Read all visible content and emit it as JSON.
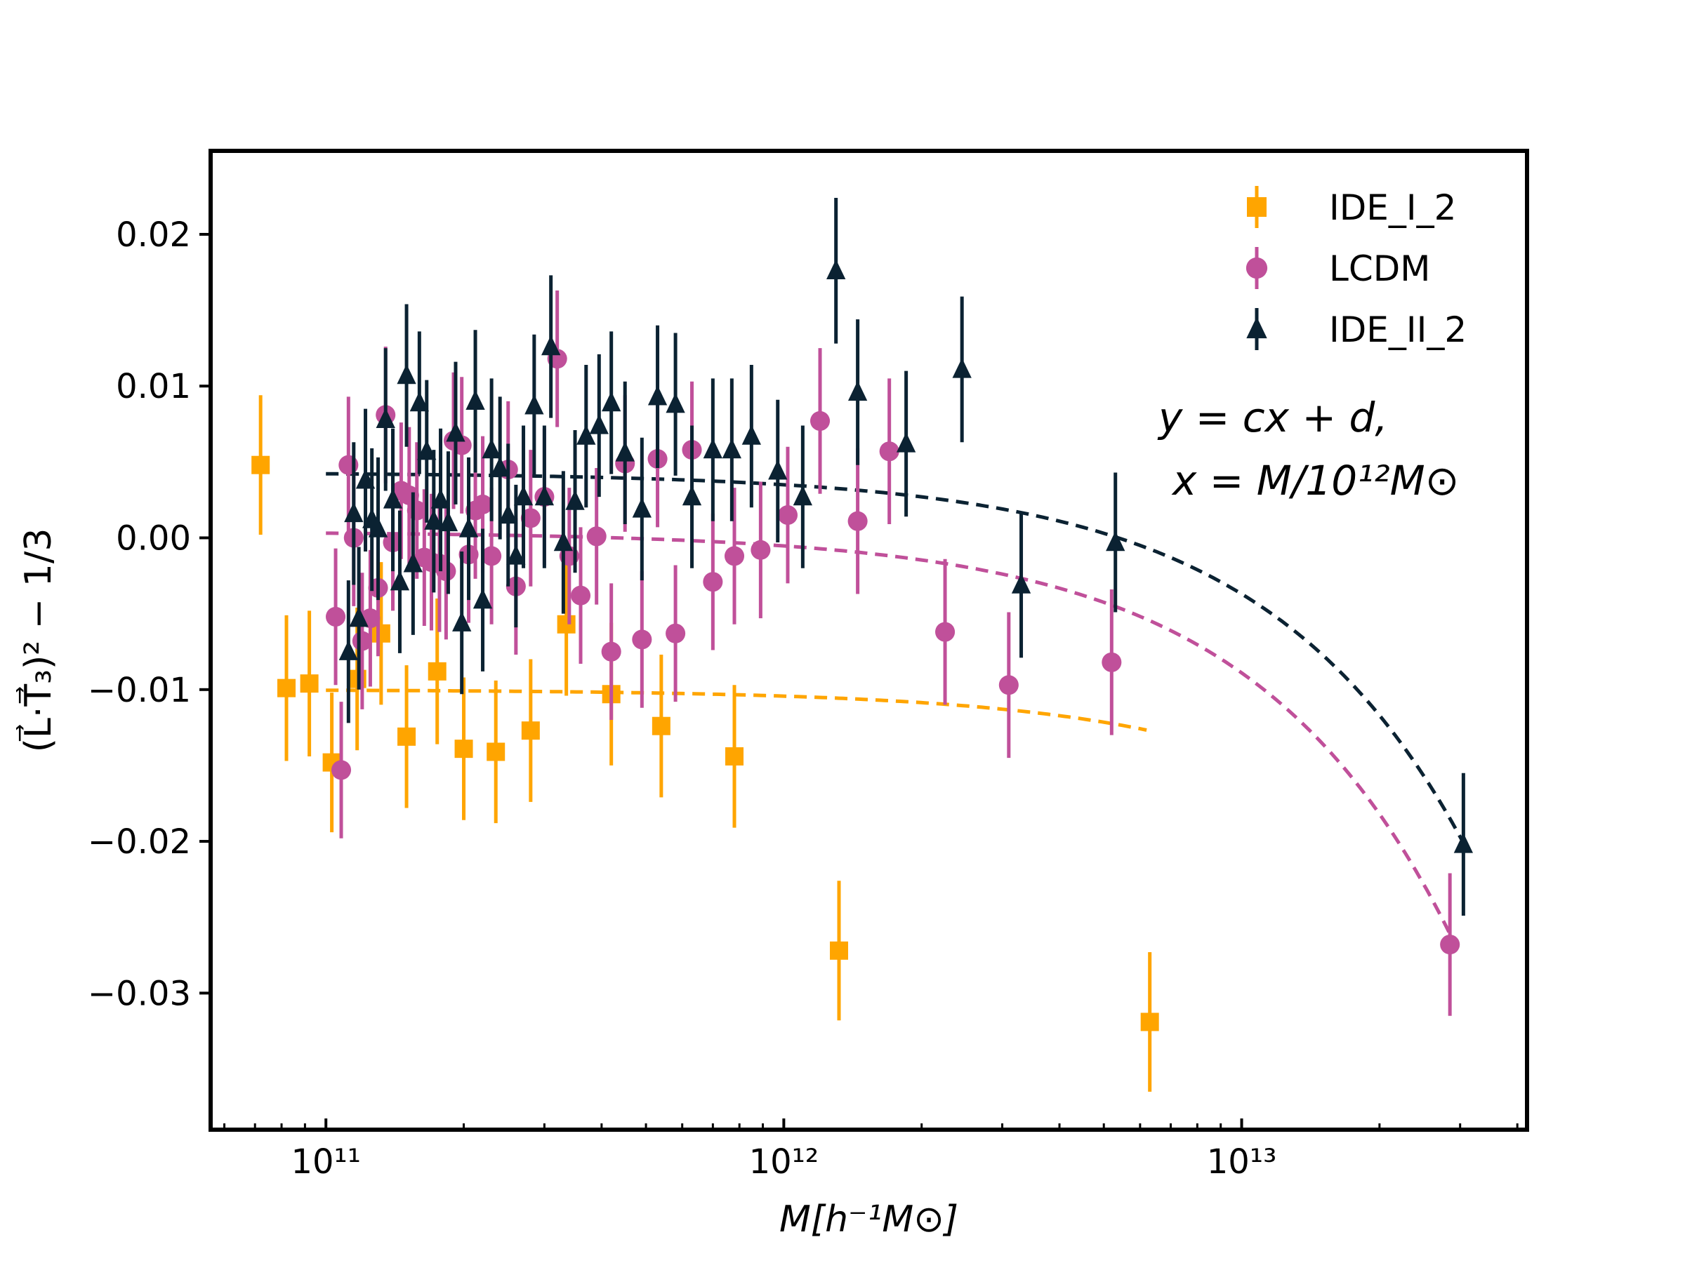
{
  "chart_data": {
    "type": "scatter",
    "xscale": "log",
    "xlim": [
      56000000000.0,
      42000000000000.0
    ],
    "ylim": [
      -0.039,
      0.0255
    ],
    "xlabel": "M[h⁻¹M⊙]",
    "ylabel": "(L⃗·T⃗₃)² − 1/3",
    "x_tick_labels": [
      "10¹¹",
      "10¹²",
      "10¹³"
    ],
    "x_tick_values": [
      100000000000.0,
      1000000000000.0,
      10000000000000.0
    ],
    "y_tick_values": [
      0.02,
      0.01,
      0.0,
      -0.01,
      -0.02,
      -0.03
    ],
    "y_tick_labels": [
      "0.02",
      "0.01",
      "0.00",
      "−0.01",
      "−0.02",
      "−0.03"
    ],
    "grid": false,
    "legend": {
      "position": "top-right",
      "entries": [
        "IDE_I_2",
        "LCDM",
        "IDE_II_2"
      ]
    },
    "annotation": [
      "y = cx + d,",
      "x = M/10¹²M⊙"
    ],
    "series": [
      {
        "name": "IDE_I_2",
        "marker": "square",
        "color": "#FFA500",
        "points": [
          [
            72000000000.0,
            0.0048,
            0.0046
          ],
          [
            82000000000.0,
            -0.0099,
            0.0048
          ],
          [
            92000000000.0,
            -0.0096,
            0.0048
          ],
          [
            103000000000.0,
            -0.0148,
            0.0046
          ],
          [
            117000000000.0,
            -0.0093,
            0.0047
          ],
          [
            132000000000.0,
            -0.0063,
            0.0047
          ],
          [
            150000000000.0,
            -0.0131,
            0.0047
          ],
          [
            175000000000.0,
            -0.0088,
            0.0048
          ],
          [
            200000000000.0,
            -0.0139,
            0.0047
          ],
          [
            235000000000.0,
            -0.0141,
            0.0047
          ],
          [
            280000000000.0,
            -0.0127,
            0.0047
          ],
          [
            335000000000.0,
            -0.0057,
            0.0047
          ],
          [
            420000000000.0,
            -0.0103,
            0.0047
          ],
          [
            540000000000.0,
            -0.0124,
            0.0047
          ],
          [
            780000000000.0,
            -0.0144,
            0.0047
          ],
          [
            1320000000000.0,
            -0.0272,
            0.0046
          ],
          [
            6300000000000.0,
            -0.0319,
            0.0046
          ]
        ],
        "fit": {
          "c": -0.00043,
          "d": -0.01,
          "x_range": [
            100000000000.0,
            6200000000000.0
          ]
        }
      },
      {
        "name": "LCDM",
        "marker": "circle",
        "color": "#C0509A",
        "points": [
          [
            105000000000.0,
            -0.0052,
            0.0045
          ],
          [
            108000000000.0,
            -0.0153,
            0.0045
          ],
          [
            112000000000.0,
            0.0048,
            0.0045
          ],
          [
            115000000000.0,
            0.0,
            0.0045
          ],
          [
            120000000000.0,
            -0.0068,
            0.0045
          ],
          [
            125000000000.0,
            -0.0053,
            0.0045
          ],
          [
            130000000000.0,
            -0.0033,
            0.0045
          ],
          [
            135000000000.0,
            0.0081,
            0.0045
          ],
          [
            140000000000.0,
            -0.0003,
            0.0045
          ],
          [
            146000000000.0,
            0.0031,
            0.0045
          ],
          [
            152000000000.0,
            0.0028,
            0.0045
          ],
          [
            158000000000.0,
            0.0018,
            0.0045
          ],
          [
            164000000000.0,
            -0.0013,
            0.0045
          ],
          [
            170000000000.0,
            -0.0016,
            0.0045
          ],
          [
            177000000000.0,
            -0.0017,
            0.0045
          ],
          [
            183000000000.0,
            -0.0022,
            0.0045
          ],
          [
            190000000000.0,
            0.0064,
            0.0045
          ],
          [
            198000000000.0,
            0.0061,
            0.0045
          ],
          [
            205000000000.0,
            -0.0011,
            0.0045
          ],
          [
            212000000000.0,
            0.0018,
            0.0045
          ],
          [
            220000000000.0,
            0.0022,
            0.0045
          ],
          [
            230000000000.0,
            -0.0012,
            0.0045
          ],
          [
            250000000000.0,
            0.0045,
            0.0045
          ],
          [
            260000000000.0,
            -0.0032,
            0.0045
          ],
          [
            280000000000.0,
            0.0013,
            0.0045
          ],
          [
            300000000000.0,
            0.0027,
            0.0045
          ],
          [
            320000000000.0,
            0.0118,
            0.0045
          ],
          [
            340000000000.0,
            -0.0012,
            0.0045
          ],
          [
            360000000000.0,
            -0.0038,
            0.0045
          ],
          [
            390000000000.0,
            0.0001,
            0.0045
          ],
          [
            420000000000.0,
            -0.0075,
            0.0045
          ],
          [
            450000000000.0,
            0.0049,
            0.0045
          ],
          [
            490000000000.0,
            -0.0067,
            0.0045
          ],
          [
            530000000000.0,
            0.0052,
            0.0045
          ],
          [
            580000000000.0,
            -0.0063,
            0.0045
          ],
          [
            630000000000.0,
            0.0058,
            0.0045
          ],
          [
            700000000000.0,
            -0.0029,
            0.0045
          ],
          [
            780000000000.0,
            -0.0012,
            0.0045
          ],
          [
            890000000000.0,
            -0.0008,
            0.0045
          ],
          [
            1020000000000.0,
            0.0015,
            0.0045
          ],
          [
            1200000000000.0,
            0.0077,
            0.0048
          ],
          [
            1450000000000.0,
            0.0011,
            0.0048
          ],
          [
            1700000000000.0,
            0.0057,
            0.0048
          ],
          [
            2250000000000.0,
            -0.0062,
            0.0048
          ],
          [
            3100000000000.0,
            -0.0097,
            0.0048
          ],
          [
            5200000000000.0,
            -0.0082,
            0.0048
          ],
          [
            28500000000000.0,
            -0.0268,
            0.0047
          ]
        ],
        "fit": {
          "c": -0.00093,
          "d": 0.0004,
          "x_range": [
            100000000000.0,
            28500000000000.0
          ]
        }
      },
      {
        "name": "IDE_II_2",
        "marker": "triangle",
        "color": "#0B2232",
        "points": [
          [
            112000000000.0,
            -0.0075,
            0.0047
          ],
          [
            115000000000.0,
            0.0016,
            0.0047
          ],
          [
            118000000000.0,
            -0.0053,
            0.0047
          ],
          [
            122000000000.0,
            0.0038,
            0.0047
          ],
          [
            126000000000.0,
            0.0012,
            0.0047
          ],
          [
            130000000000.0,
            0.0006,
            0.0047
          ],
          [
            135000000000.0,
            0.0078,
            0.0047
          ],
          [
            140000000000.0,
            0.0025,
            0.0047
          ],
          [
            145000000000.0,
            -0.0029,
            0.0047
          ],
          [
            150000000000.0,
            0.0107,
            0.0047
          ],
          [
            155000000000.0,
            -0.0017,
            0.0047
          ],
          [
            160000000000.0,
            0.0089,
            0.0047
          ],
          [
            166000000000.0,
            0.0057,
            0.0047
          ],
          [
            172000000000.0,
            0.0011,
            0.0047
          ],
          [
            178000000000.0,
            0.0025,
            0.0047
          ],
          [
            185000000000.0,
            0.001,
            0.0047
          ],
          [
            192000000000.0,
            0.0069,
            0.0047
          ],
          [
            198000000000.0,
            -0.0056,
            0.0047
          ],
          [
            205000000000.0,
            0.0006,
            0.0047
          ],
          [
            212000000000.0,
            0.009,
            0.0047
          ],
          [
            220000000000.0,
            -0.0041,
            0.0047
          ],
          [
            230000000000.0,
            0.0058,
            0.0047
          ],
          [
            240000000000.0,
            0.0046,
            0.0047
          ],
          [
            250000000000.0,
            0.0015,
            0.0047
          ],
          [
            260000000000.0,
            -0.0012,
            0.0047
          ],
          [
            270000000000.0,
            0.0027,
            0.0047
          ],
          [
            285000000000.0,
            0.0087,
            0.0047
          ],
          [
            300000000000.0,
            0.0027,
            0.0047
          ],
          [
            310000000000.0,
            0.0126,
            0.0047
          ],
          [
            330000000000.0,
            -0.0003,
            0.0047
          ],
          [
            350000000000.0,
            0.0024,
            0.0047
          ],
          [
            370000000000.0,
            0.0067,
            0.0047
          ],
          [
            395000000000.0,
            0.0074,
            0.0047
          ],
          [
            420000000000.0,
            0.0089,
            0.0047
          ],
          [
            450000000000.0,
            0.0056,
            0.0047
          ],
          [
            490000000000.0,
            0.0019,
            0.0047
          ],
          [
            530000000000.0,
            0.0093,
            0.0047
          ],
          [
            580000000000.0,
            0.0088,
            0.0047
          ],
          [
            630000000000.0,
            0.0027,
            0.0047
          ],
          [
            700000000000.0,
            0.0058,
            0.0047
          ],
          [
            770000000000.0,
            0.0058,
            0.0047
          ],
          [
            850000000000.0,
            0.0067,
            0.0047
          ],
          [
            970000000000.0,
            0.0044,
            0.0047
          ],
          [
            1100000000000.0,
            0.0027,
            0.0047
          ],
          [
            1300000000000.0,
            0.0176,
            0.0048
          ],
          [
            1450000000000.0,
            0.0096,
            0.0048
          ],
          [
            1850000000000.0,
            0.0062,
            0.0048
          ],
          [
            2450000000000.0,
            0.0111,
            0.0048
          ],
          [
            3300000000000.0,
            -0.0031,
            0.0048
          ],
          [
            5300000000000.0,
            -0.0003,
            0.0046
          ],
          [
            30500000000000.0,
            -0.0202,
            0.0047
          ]
        ],
        "fit": {
          "c": -0.0008,
          "d": 0.0043,
          "x_range": [
            100000000000.0,
            30500000000000.0
          ]
        }
      }
    ]
  }
}
